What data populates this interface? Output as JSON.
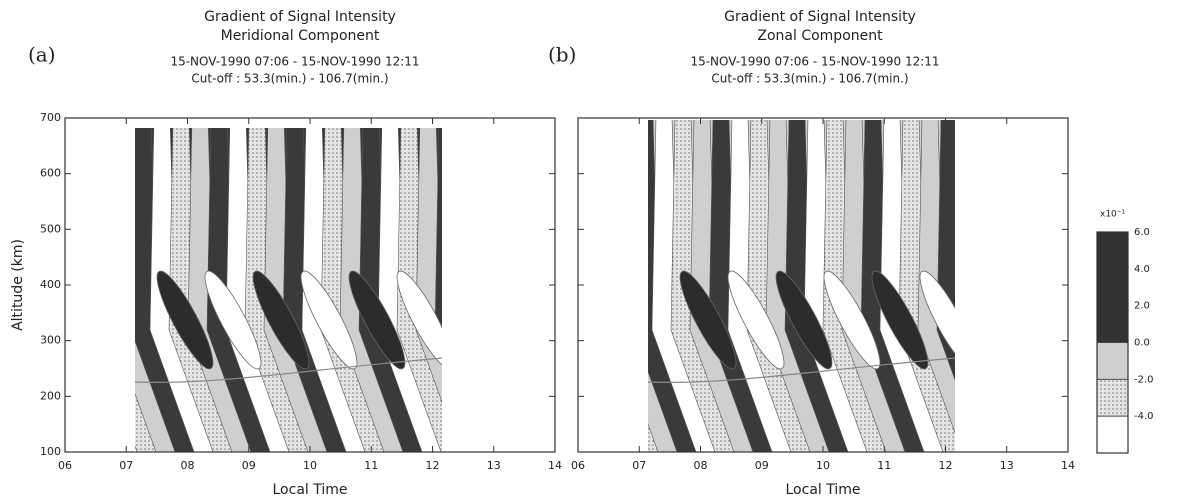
{
  "chart_data": [
    {
      "type": "contour",
      "panel": "(a)",
      "title": "Gradient of Signal Intensity",
      "subtitle": "Meridional Component",
      "period": "15-NOV-1990 07:06 - 15-NOV-1990 12:11",
      "cutoff": "Cut-off :  53.3(min.) - 106.7(min.)",
      "xlabel": "Local Time",
      "ylabel": "Altitude (km)",
      "xlim": [
        6,
        14
      ],
      "xticks": [
        {
          "value": 6,
          "label": "06"
        },
        {
          "value": 7,
          "label": "07"
        },
        {
          "value": 8,
          "label": "08"
        },
        {
          "value": 9,
          "label": "09"
        },
        10,
        11,
        12,
        13,
        14
      ],
      "ylim": [
        100,
        700
      ],
      "yticks": [
        100,
        200,
        300,
        400,
        500,
        600,
        700
      ]
    },
    {
      "type": "contour",
      "panel": "(b)",
      "title": "Gradient of Signal Intensity",
      "subtitle": "Zonal Component",
      "period": "15-NOV-1990 07:06 - 15-NOV-1990 12:11",
      "cutoff": "Cut-off :  53.3(min.) - 106.7(min.)",
      "xlabel": "Local Time",
      "xlim": [
        6,
        14
      ],
      "xticks": [
        {
          "value": 6,
          "label": "06"
        },
        {
          "value": 7,
          "label": "07"
        },
        {
          "value": 8,
          "label": "08"
        },
        {
          "value": 9,
          "label": "09"
        },
        10,
        11,
        12,
        13,
        14
      ],
      "ylim": [
        100,
        700
      ],
      "yticks": [
        100,
        200,
        300,
        400,
        500,
        600,
        700
      ],
      "colorbar": {
        "scale_label": "x10⁻¹",
        "clim": [
          -6,
          6
        ],
        "ticks": [
          {
            "value": 6,
            "label": "6.0"
          },
          {
            "value": 4,
            "label": "4.0"
          },
          {
            "value": 2,
            "label": "2.0"
          },
          {
            "value": 0,
            "label": "0.0"
          },
          {
            "value": -2,
            "label": "-2.0"
          },
          {
            "value": -4,
            "label": "-4.0"
          }
        ]
      }
    }
  ]
}
